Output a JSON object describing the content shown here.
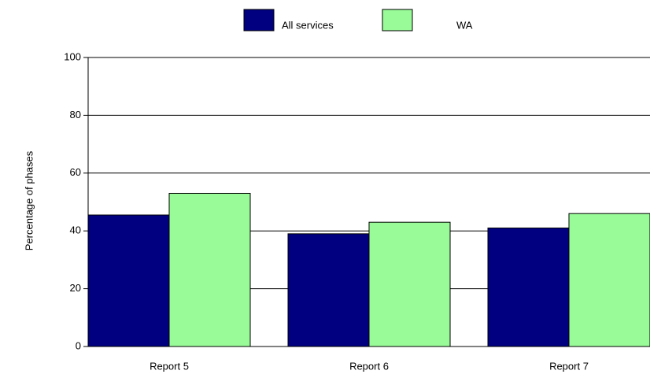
{
  "chart_data": {
    "type": "bar",
    "y_label": "Percentage of phases",
    "categories": [
      "Report 5",
      "Report 6",
      "Report 7"
    ],
    "series": [
      {
        "name": "All services",
        "color": "#000080",
        "values": [
          45.5,
          39,
          41
        ]
      },
      {
        "name": "WA",
        "color": "#98fb98",
        "values": [
          53,
          43,
          46
        ]
      }
    ],
    "ylim": [
      0,
      100
    ],
    "yticks": [
      0,
      20,
      40,
      60,
      80,
      100
    ],
    "grid": true,
    "legend": "top"
  }
}
